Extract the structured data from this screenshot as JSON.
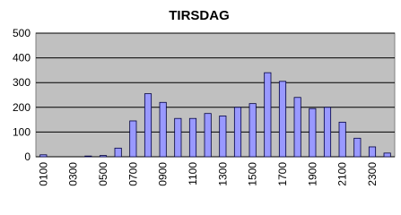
{
  "chart_data": {
    "type": "bar",
    "title": "TIRSDAG",
    "categories": [
      "0100",
      null,
      "0300",
      null,
      "0500",
      null,
      "0700",
      null,
      "0900",
      null,
      "1100",
      null,
      "1300",
      null,
      "1500",
      null,
      "1700",
      null,
      "1900",
      null,
      "2100",
      null,
      "2300",
      null
    ],
    "values": [
      8,
      0,
      0,
      3,
      5,
      35,
      145,
      255,
      220,
      155,
      155,
      175,
      165,
      200,
      215,
      340,
      305,
      240,
      195,
      200,
      140,
      75,
      40,
      15
    ],
    "color": "#9999ff",
    "ylim": [
      0,
      500
    ],
    "yticks": [
      0,
      100,
      200,
      300,
      400,
      500
    ],
    "grid": true
  }
}
